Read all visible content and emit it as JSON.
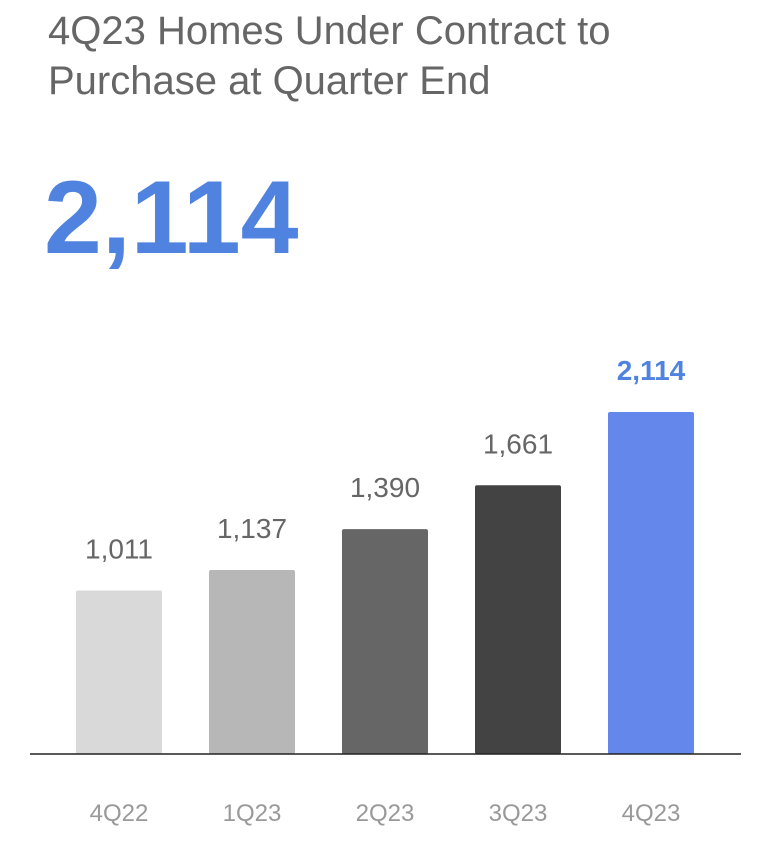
{
  "title": "4Q23 Homes Under Contract to Purchase at Quarter End",
  "headline_value": "2,114",
  "chart_data": {
    "type": "bar",
    "categories": [
      "4Q22",
      "1Q23",
      "2Q23",
      "3Q23",
      "4Q23"
    ],
    "values": [
      1011,
      1137,
      1390,
      1661,
      2114
    ],
    "value_labels": [
      "1,011",
      "1,137",
      "1,390",
      "1,661",
      "2,114"
    ],
    "colors": [
      "#d9d9d9",
      "#b7b7b7",
      "#666666",
      "#434343",
      "#6487eb"
    ],
    "highlight_index": 4,
    "highlight_color": "#5083e0",
    "label_color": "#666666",
    "tick_color": "#999999",
    "axis_color": "#222222",
    "ylim": [
      0,
      2114
    ],
    "grid": false,
    "title": "",
    "xlabel": "",
    "ylabel": ""
  }
}
